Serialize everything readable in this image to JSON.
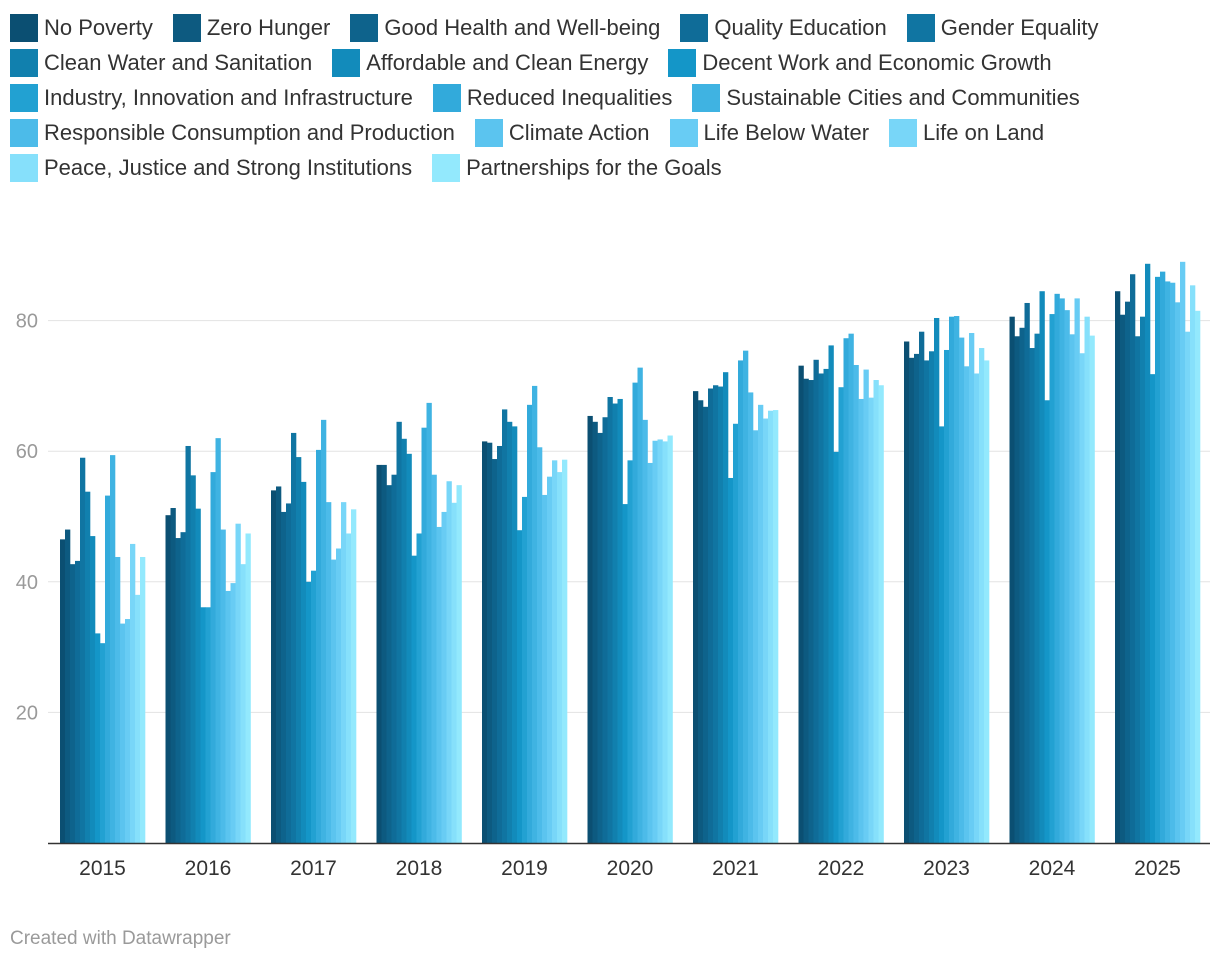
{
  "colors": [
    "#0b4f72",
    "#0d5a80",
    "#0e638c",
    "#0f6c98",
    "#1075a2",
    "#1180ae",
    "#128bbb",
    "#1496c8",
    "#22a1d2",
    "#32aadb",
    "#3fb3e2",
    "#4cbbe9",
    "#5bc4ef",
    "#68ccf4",
    "#78d6f8",
    "#86e0fb",
    "#93e9fd"
  ],
  "chart_data": {
    "type": "bar",
    "title": "",
    "xlabel": "",
    "ylabel": "",
    "ylim": [
      0,
      93
    ],
    "yticks": [
      20,
      40,
      60,
      80
    ],
    "grid": true,
    "legend_position": "top",
    "categories": [
      "2015",
      "2016",
      "2017",
      "2018",
      "2019",
      "2020",
      "2021",
      "2022",
      "2023",
      "2024",
      "2025"
    ],
    "series": [
      {
        "name": "No Poverty",
        "values": [
          46.5,
          50.2,
          54.0,
          57.9,
          61.5,
          65.4,
          69.2,
          73.1,
          76.8,
          80.6,
          84.5
        ]
      },
      {
        "name": "Zero Hunger",
        "values": [
          48.0,
          51.3,
          54.6,
          57.9,
          61.3,
          64.5,
          67.8,
          71.1,
          74.3,
          77.6,
          80.9
        ]
      },
      {
        "name": "Good Health and Well-being",
        "values": [
          42.7,
          46.7,
          50.7,
          54.8,
          58.8,
          62.8,
          66.8,
          70.9,
          74.9,
          78.9,
          82.9
        ]
      },
      {
        "name": "Quality Education",
        "values": [
          43.2,
          47.6,
          52.0,
          56.4,
          60.8,
          65.2,
          69.6,
          74.0,
          78.3,
          82.7,
          87.1
        ]
      },
      {
        "name": "Gender Equality",
        "values": [
          59.0,
          60.8,
          62.8,
          64.5,
          66.4,
          68.3,
          70.1,
          71.9,
          73.9,
          75.8,
          77.6
        ]
      },
      {
        "name": "Clean Water and Sanitation",
        "values": [
          53.8,
          56.3,
          59.1,
          61.9,
          64.5,
          67.3,
          69.9,
          72.6,
          75.3,
          78.0,
          80.6
        ]
      },
      {
        "name": "Affordable and Clean Energy",
        "values": [
          47.0,
          51.2,
          55.3,
          59.6,
          63.8,
          68.0,
          72.1,
          76.2,
          80.4,
          84.5,
          88.7
        ]
      },
      {
        "name": "Decent Work and Economic Growth",
        "values": [
          32.1,
          36.1,
          40.0,
          44.0,
          47.9,
          51.9,
          55.9,
          59.9,
          63.8,
          67.8,
          71.8
        ]
      },
      {
        "name": "Industry, Innovation and Infrastructure",
        "values": [
          30.6,
          36.1,
          41.7,
          47.4,
          53.0,
          58.6,
          64.2,
          69.8,
          75.5,
          81.0,
          86.7
        ]
      },
      {
        "name": "Reduced Inequalities",
        "values": [
          53.2,
          56.8,
          60.2,
          63.6,
          67.1,
          70.5,
          73.9,
          77.3,
          80.6,
          84.1,
          87.5
        ]
      },
      {
        "name": "Sustainable Cities and Communities",
        "values": [
          59.4,
          62.0,
          64.8,
          67.4,
          70.0,
          72.8,
          75.4,
          78.0,
          80.7,
          83.4,
          86.0
        ]
      },
      {
        "name": "Responsible Consumption and Production",
        "values": [
          43.8,
          48.0,
          52.2,
          56.4,
          60.6,
          64.8,
          69.0,
          73.2,
          77.4,
          81.6,
          85.8
        ]
      },
      {
        "name": "Climate Action",
        "values": [
          33.6,
          38.6,
          43.4,
          48.4,
          53.3,
          58.2,
          63.2,
          68.0,
          73.0,
          77.9,
          82.8
        ]
      },
      {
        "name": "Life Below Water",
        "values": [
          34.3,
          39.8,
          45.1,
          50.7,
          56.1,
          61.6,
          67.1,
          72.5,
          78.1,
          83.4,
          89.0
        ]
      },
      {
        "name": "Life on Land",
        "values": [
          45.8,
          48.9,
          52.2,
          55.4,
          58.6,
          61.8,
          65.0,
          68.2,
          71.9,
          75.0,
          78.3
        ]
      },
      {
        "name": "Peace, Justice and Strong Institutions",
        "values": [
          38.0,
          42.7,
          47.4,
          52.1,
          56.8,
          61.5,
          66.2,
          70.9,
          75.8,
          80.6,
          85.4
        ]
      },
      {
        "name": "Partnerships for the Goals",
        "values": [
          43.8,
          47.4,
          51.1,
          54.8,
          58.7,
          62.4,
          66.3,
          70.1,
          73.9,
          77.7,
          81.5
        ]
      }
    ]
  },
  "credit": "Created with Datawrapper"
}
